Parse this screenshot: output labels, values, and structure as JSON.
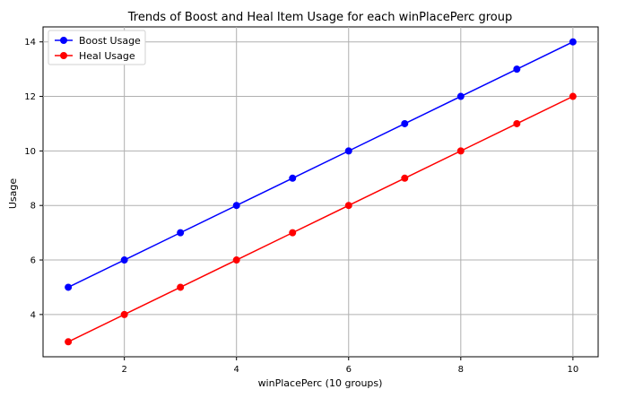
{
  "chart_data": {
    "type": "line",
    "title": "Trends of Boost and Heal Item Usage for each winPlacePerc group",
    "xlabel": "winPlacePerc (10 groups)",
    "ylabel": "Usage",
    "x": [
      1,
      2,
      3,
      4,
      5,
      6,
      7,
      8,
      9,
      10
    ],
    "xlim": [
      0.55,
      10.45
    ],
    "ylim": [
      2.45,
      14.55
    ],
    "xticks": [
      2,
      4,
      6,
      8,
      10
    ],
    "yticks": [
      4,
      6,
      8,
      10,
      12,
      14
    ],
    "grid": true,
    "legend_position": "top-left",
    "series": [
      {
        "name": "Boost Usage",
        "color": "#0000ff",
        "marker": "circle",
        "values": [
          5,
          6,
          7,
          8,
          9,
          10,
          11,
          12,
          13,
          14
        ]
      },
      {
        "name": "Heal Usage",
        "color": "#ff0000",
        "marker": "circle",
        "values": [
          3,
          4,
          5,
          6,
          7,
          8,
          9,
          10,
          11,
          12
        ]
      }
    ]
  }
}
